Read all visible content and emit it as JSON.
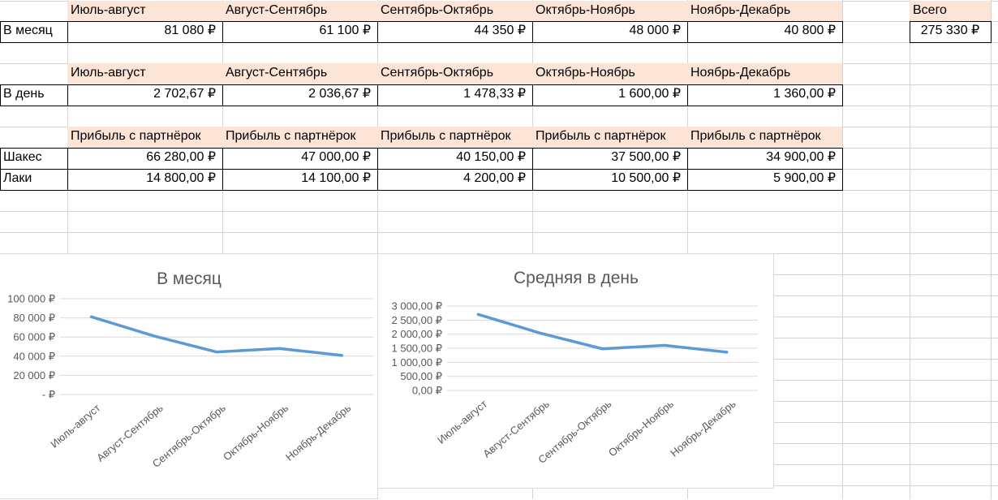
{
  "table_month": {
    "headers": [
      "Июль-август",
      "Август-Сентябрь",
      "Сентябрь-Октябрь",
      "Октябрь-Ноябрь",
      "Ноябрь-Декабрь"
    ],
    "row_label": "В месяц",
    "values": [
      "81 080 ₽",
      "61 100 ₽",
      "44 350 ₽",
      "48 000 ₽",
      "40 800 ₽"
    ],
    "total_label": "Всего",
    "total_value": "275 330 ₽"
  },
  "table_day": {
    "headers": [
      "Июль-август",
      "Август-Сентябрь",
      "Сентябрь-Октябрь",
      "Октябрь-Ноябрь",
      "Ноябрь-Декабрь"
    ],
    "row_label": "В день",
    "values": [
      "2 702,67 ₽",
      "2 036,67 ₽",
      "1 478,33 ₽",
      "1 600,00 ₽",
      "1 360,00 ₽"
    ]
  },
  "table_partners": {
    "headers": [
      "Прибыль с партнёрок",
      "Прибыль с партнёрок",
      "Прибыль с партнёрок",
      "Прибыль с партнёрок",
      "Прибыль с партнёрок"
    ],
    "rows": [
      {
        "label": "Шакес",
        "values": [
          "66 280,00 ₽",
          "47 000,00 ₽",
          "40 150,00 ₽",
          "37 500,00 ₽",
          "34 900,00 ₽"
        ]
      },
      {
        "label": "Лаки",
        "values": [
          "14 800,00 ₽",
          "14 100,00 ₽",
          "4 200,00 ₽",
          "10 500,00 ₽",
          "5 900,00 ₽"
        ]
      }
    ]
  },
  "colors": {
    "header_fill": "#fce4d6",
    "line": "#5b9bd5",
    "gridline": "#d9d9d9",
    "sheet_grid": "#d4d4d4",
    "axis_text": "#595959"
  },
  "chart_data": [
    {
      "type": "line",
      "title": "В месяц",
      "categories": [
        "Июль-август",
        "Август-Сентябрь",
        "Сентябрь-Октябрь",
        "Октябрь-Ноябрь",
        "Ноябрь-Декабрь"
      ],
      "values": [
        81080,
        61100,
        44350,
        48000,
        40800
      ],
      "ylim": [
        0,
        100000
      ],
      "ytick_labels": [
        "- ₽",
        "20 000 ₽",
        "40 000 ₽",
        "60 000 ₽",
        "80 000 ₽",
        "100 000 ₽"
      ],
      "grid": true,
      "legend": "none"
    },
    {
      "type": "line",
      "title": "Средняя в день",
      "categories": [
        "Июль-август",
        "Август-Сентябрь",
        "Сентябрь-Октябрь",
        "Октябрь-Ноябрь",
        "Ноябрь-Декабрь"
      ],
      "values": [
        2702.67,
        2036.67,
        1478.33,
        1600.0,
        1360.0
      ],
      "ylim": [
        0,
        3000
      ],
      "ytick_labels": [
        "0,00 ₽",
        "500,00 ₽",
        "1 000,00 ₽",
        "1 500,00 ₽",
        "2 000,00 ₽",
        "2 500,00 ₽",
        "3 000,00 ₽"
      ],
      "grid": true,
      "legend": "none"
    }
  ]
}
